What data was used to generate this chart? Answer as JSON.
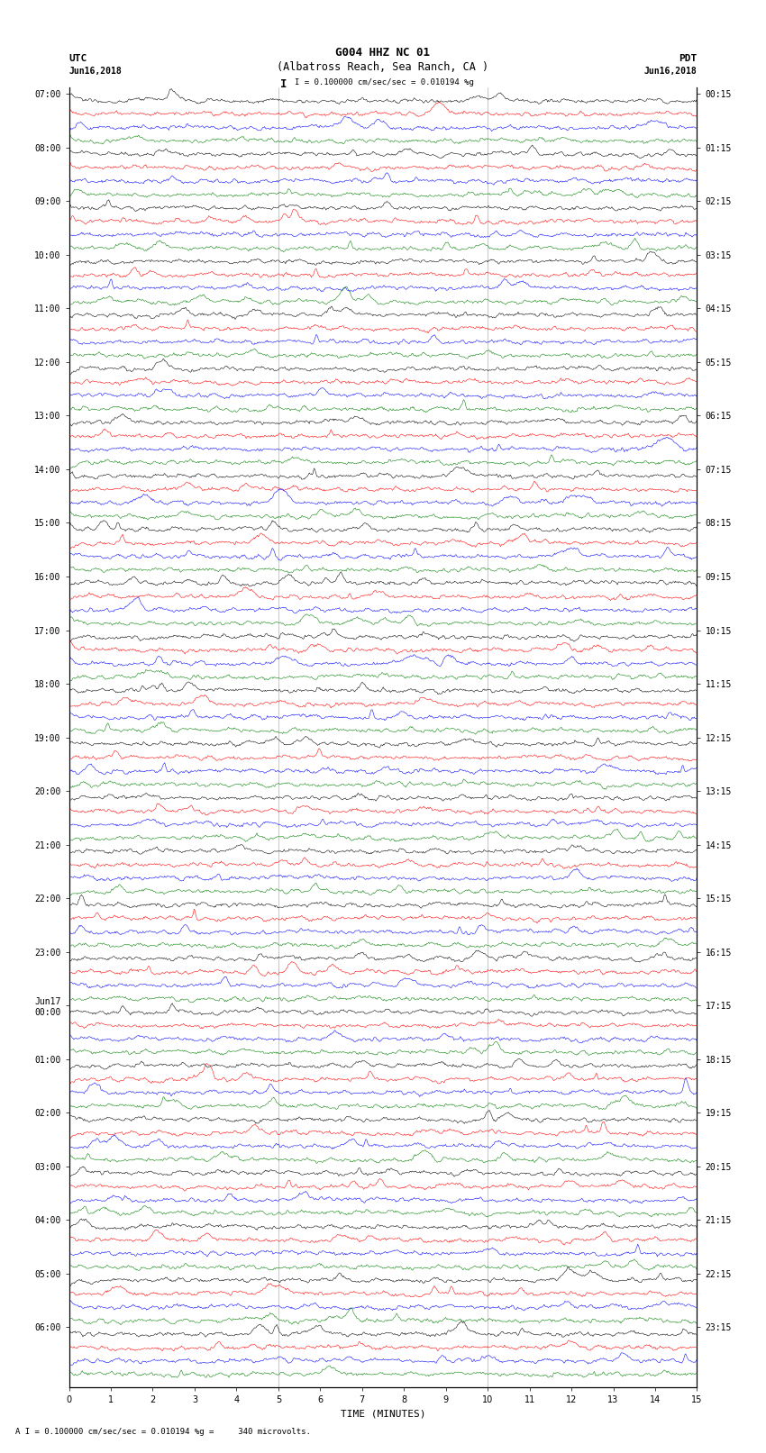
{
  "title_line1": "G004 HHZ NC 01",
  "title_line2": "(Albatross Reach, Sea Ranch, CA )",
  "label_utc": "UTC",
  "label_pdt": "PDT",
  "date_left": "Jun16,2018",
  "date_right": "Jun16,2018",
  "scale_text": "I = 0.100000 cm/sec/sec = 0.010194 %g",
  "footer_text": "A I = 0.100000 cm/sec/sec = 0.010194 %g =     340 microvolts.",
  "xlabel": "TIME (MINUTES)",
  "left_times": [
    "07:00",
    "08:00",
    "09:00",
    "10:00",
    "11:00",
    "12:00",
    "13:00",
    "14:00",
    "15:00",
    "16:00",
    "17:00",
    "18:00",
    "19:00",
    "20:00",
    "21:00",
    "22:00",
    "23:00",
    "Jun17\n00:00",
    "01:00",
    "02:00",
    "03:00",
    "04:00",
    "05:00",
    "06:00"
  ],
  "right_times": [
    "00:15",
    "01:15",
    "02:15",
    "03:15",
    "04:15",
    "05:15",
    "06:15",
    "07:15",
    "08:15",
    "09:15",
    "10:15",
    "11:15",
    "12:15",
    "13:15",
    "14:15",
    "15:15",
    "16:15",
    "17:15",
    "18:15",
    "19:15",
    "20:15",
    "21:15",
    "22:15",
    "23:15"
  ],
  "colors": [
    "black",
    "red",
    "blue",
    "green"
  ],
  "n_rows": 24,
  "traces_per_row": 4,
  "minutes_per_row": 15,
  "xmin": 0,
  "xmax": 15,
  "xticks": [
    0,
    1,
    2,
    3,
    4,
    5,
    6,
    7,
    8,
    9,
    10,
    11,
    12,
    13,
    14,
    15
  ],
  "figwidth": 8.5,
  "figheight": 16.13,
  "dpi": 100,
  "bg_color": "white",
  "noise_scale": 0.32,
  "vline_positions": [
    5,
    10
  ],
  "vline_color": "gray",
  "vline_alpha": 0.5,
  "tick_fontsize": 7,
  "label_fontsize": 8,
  "title_fontsize": 9
}
